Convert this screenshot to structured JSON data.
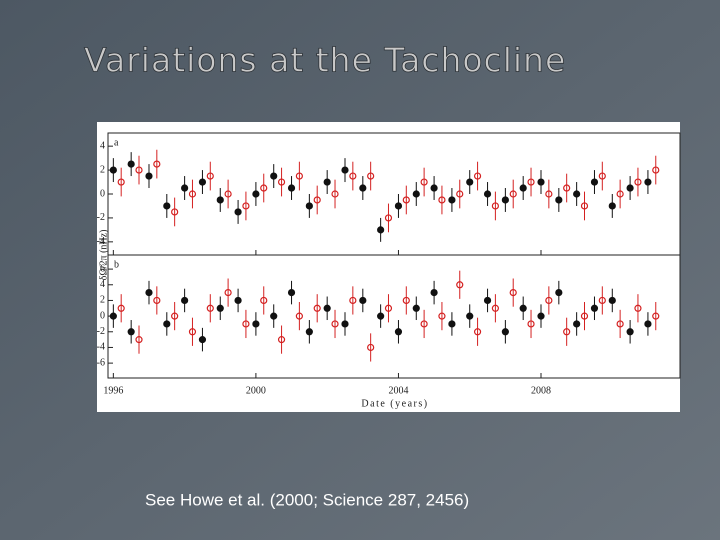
{
  "slide": {
    "title": "Variations at the Tachocline",
    "caption": "See Howe et al. (2000; Science 287, 2456)"
  },
  "figure": {
    "ylabel": "δΩ/2π (nHz)",
    "xlabel": "Date (years)"
  },
  "chart_data": [
    {
      "type": "scatter",
      "panel": "a",
      "x": [
        1996.0,
        1996.5,
        1997.0,
        1997.5,
        1998.0,
        1998.5,
        1999.0,
        1999.5,
        2000.0,
        2000.5,
        2001.0,
        2001.5,
        2002.0,
        2002.5,
        2003.0,
        2003.5,
        2004.0,
        2004.5,
        2005.0,
        2005.5,
        2006.0,
        2006.5,
        2007.0,
        2007.5,
        2008.0,
        2008.5,
        2009.0,
        2009.5,
        2010.0,
        2010.5,
        2011.0
      ],
      "series": [
        {
          "name": "a-black",
          "color": "#111111",
          "error": 1,
          "values": [
            2,
            2.5,
            1.5,
            -1,
            0.5,
            1,
            -0.5,
            -1.5,
            0,
            1.5,
            0.5,
            -1,
            1,
            2,
            0.5,
            -3,
            -1,
            0,
            0.5,
            -0.5,
            1,
            0,
            -0.5,
            0.5,
            1,
            -0.5,
            0,
            1,
            -1,
            0.5,
            1
          ]
        },
        {
          "name": "a-red",
          "color": "#d42020",
          "error": 1.2,
          "values": [
            1,
            2,
            2.5,
            -1.5,
            0,
            1.5,
            0,
            -1,
            0.5,
            1,
            1.5,
            -0.5,
            0,
            1.5,
            1.5,
            -2,
            -0.5,
            1,
            -0.5,
            0,
            1.5,
            -1,
            0,
            1,
            0,
            0.5,
            -1,
            1.5,
            0,
            1,
            2
          ]
        }
      ],
      "xlim": [
        1995.85,
        2011.9
      ],
      "ylim": [
        -5.1,
        5.1
      ],
      "xticks": [
        1996,
        2000,
        2004,
        2008
      ],
      "yticks": [
        4,
        2,
        0,
        -2,
        -4
      ]
    },
    {
      "type": "scatter",
      "panel": "b",
      "x": [
        1996.0,
        1996.5,
        1997.0,
        1997.5,
        1998.0,
        1998.5,
        1999.0,
        1999.5,
        2000.0,
        2000.5,
        2001.0,
        2001.5,
        2002.0,
        2002.5,
        2003.0,
        2003.5,
        2004.0,
        2004.5,
        2005.0,
        2005.5,
        2006.0,
        2006.5,
        2007.0,
        2007.5,
        2008.0,
        2008.5,
        2009.0,
        2009.5,
        2010.0,
        2010.5,
        2011.0
      ],
      "series": [
        {
          "name": "b-black",
          "color": "#111111",
          "error": 1.5,
          "values": [
            0,
            -2,
            3,
            -1,
            2,
            -3,
            1,
            2,
            -1,
            0,
            3,
            -2,
            1,
            -1,
            2,
            0,
            -2,
            1,
            3,
            -1,
            0,
            2,
            -2,
            1,
            0,
            3,
            -1,
            1,
            2,
            -2,
            -1
          ]
        },
        {
          "name": "b-red",
          "color": "#d42020",
          "error": 1.8,
          "values": [
            1,
            -3,
            2,
            0,
            -2,
            1,
            3,
            -1,
            2,
            -3,
            0,
            1,
            -1,
            2,
            -4,
            1,
            2,
            -1,
            0,
            4,
            -2,
            1,
            3,
            -1,
            2,
            -2,
            0,
            2,
            -1,
            1,
            0
          ]
        }
      ],
      "xlim": [
        1995.85,
        2011.9
      ],
      "ylim": [
        -7.9,
        7.8
      ],
      "xticks": [
        1996,
        2000,
        2004,
        2008
      ],
      "yticks": [
        6,
        4,
        2,
        0,
        -2,
        -4,
        -6
      ]
    }
  ]
}
